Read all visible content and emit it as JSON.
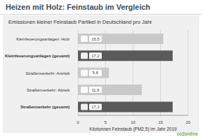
{
  "chart_data": {
    "type": "bar",
    "orientation": "horizontal",
    "title": "Heizen mit Holz: Feinstaub im Vergleich",
    "subtitle": "Emissionen kleiner Feinstaub Partikel in Deutschland pro Jahr",
    "categories": [
      "Kleinfeuerungsanlagen: Holz",
      "Kleinfeuerungsanlagen (gesamt)",
      "Straßenverkehr: Antrieb",
      "Straßenverkehr: Abrieb",
      "Straßenverkehr (gesamt)"
    ],
    "values": [
      15.5,
      17.2,
      5.6,
      11.6,
      17.2
    ],
    "value_labels": [
      "15,5",
      "17,2",
      "5,6",
      "11,6",
      "17,2"
    ],
    "colors": [
      "#c9c9c9",
      "#5a5a5a",
      "#c9c9c9",
      "#c9c9c9",
      "#5a5a5a"
    ],
    "xlabel": "Kilotonnen Feinstaub (PM2,5) im Jahr 2019",
    "xlim": [
      0,
      20
    ],
    "xticks": [
      0,
      5,
      10,
      15,
      20
    ],
    "grid": true,
    "data_labels": true,
    "source": "co2online"
  }
}
